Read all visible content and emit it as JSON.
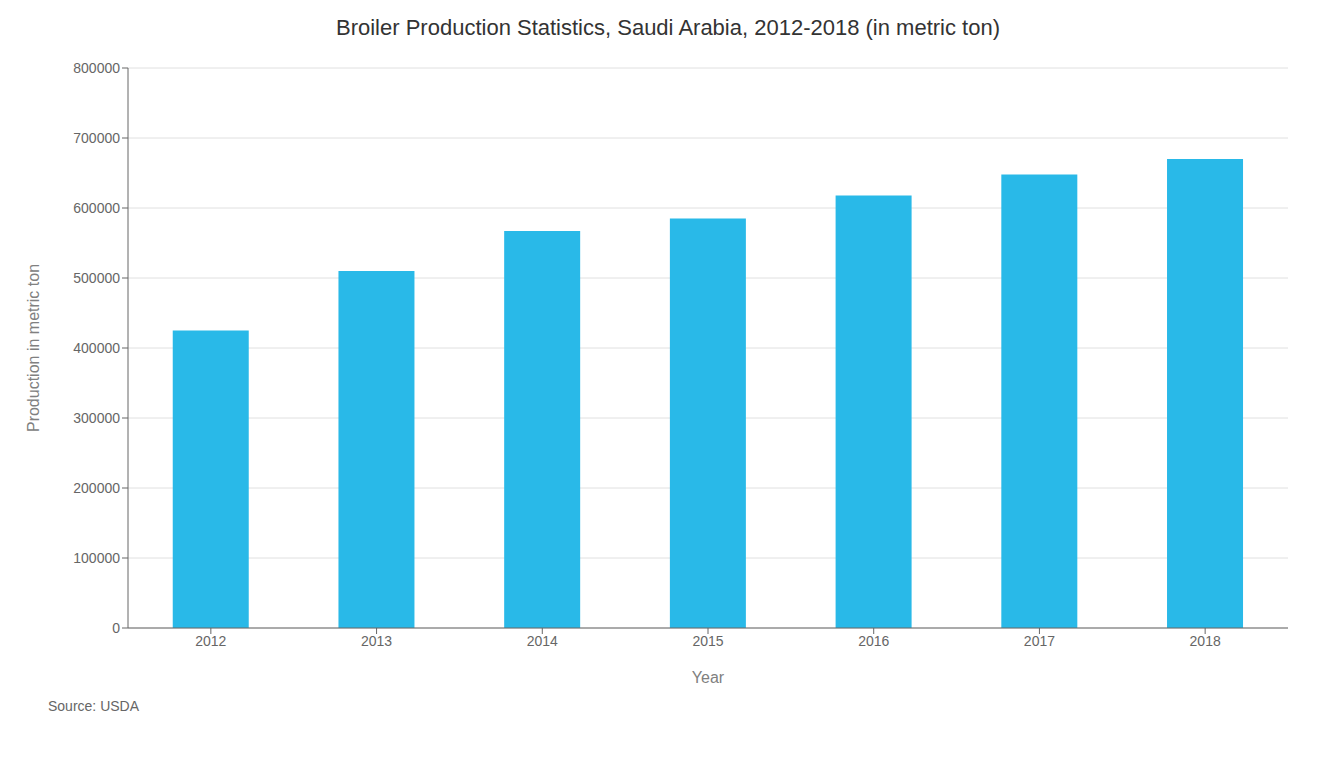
{
  "chart_data": {
    "type": "bar",
    "title": "Broiler Production Statistics, Saudi Arabia, 2012-2018 (in metric ton)",
    "xlabel": "Year",
    "ylabel": "Production in metric ton",
    "categories": [
      "2012",
      "2013",
      "2014",
      "2015",
      "2016",
      "2017",
      "2018"
    ],
    "values": [
      425000,
      510000,
      567000,
      585000,
      618000,
      648000,
      670000
    ],
    "color": "#29B9E8",
    "ylim": [
      0,
      800000
    ],
    "yticks": [
      0,
      100000,
      200000,
      300000,
      400000,
      500000,
      600000,
      700000,
      800000
    ],
    "grid": true,
    "annotations": [
      "Source: USDA"
    ]
  }
}
